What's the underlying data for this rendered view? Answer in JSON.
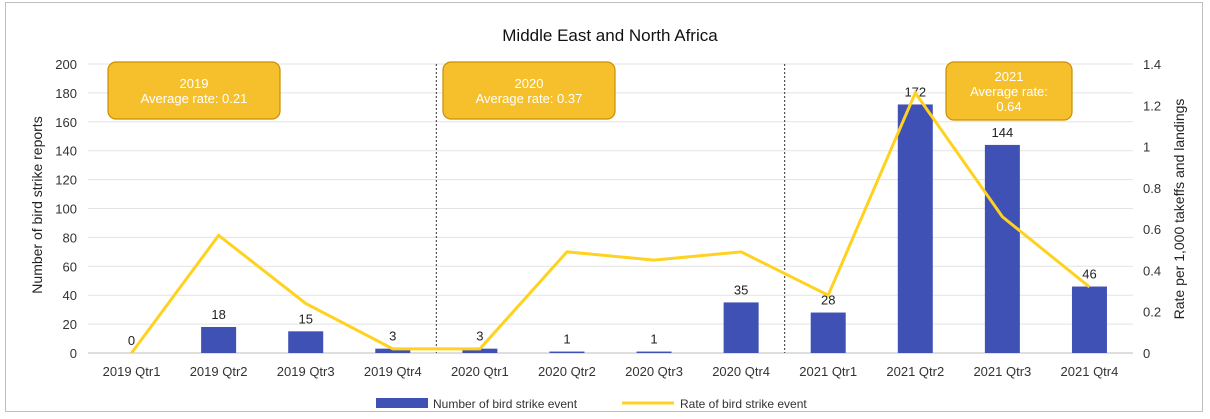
{
  "chart_data": {
    "type": "bar",
    "title": "Middle East and North Africa",
    "ylabel": "Number of bird strike reports",
    "y2label": "Rate per 1,000 takeffs and landings",
    "ylim": [
      0,
      200
    ],
    "y2lim": [
      0,
      1.4
    ],
    "yticks": [
      "0",
      "20",
      "40",
      "60",
      "80",
      "100",
      "120",
      "140",
      "160",
      "180",
      "200"
    ],
    "y2ticks": [
      "0",
      "0.2",
      "0.4",
      "0.6",
      "0.8",
      "1",
      "1.2",
      "1.4"
    ],
    "grid": true,
    "legend_position": "bottom",
    "categories": [
      "2019 Qtr1",
      "2019 Qtr2",
      "2019 Qtr3",
      "2019 Qtr4",
      "2020 Qtr1",
      "2020 Qtr2",
      "2020 Qtr3",
      "2020 Qtr4",
      "2021 Qtr1",
      "2021 Qtr2",
      "2021 Qtr3",
      "2021 Qtr4"
    ],
    "series": [
      {
        "name": "Number of bird strike event",
        "type": "bar",
        "axis": "left",
        "color": "#3f51b5",
        "values": [
          0,
          18,
          15,
          3,
          3,
          1,
          1,
          35,
          28,
          172,
          144,
          46
        ],
        "labels": [
          "0",
          "18",
          "15",
          "3",
          "3",
          "1",
          "1",
          "35",
          "28",
          "172",
          "144",
          "46"
        ]
      },
      {
        "name": "Rate of bird strike event",
        "type": "line",
        "axis": "right",
        "color": "#ffd21f",
        "values": [
          0.0,
          0.57,
          0.24,
          0.02,
          0.02,
          0.49,
          0.45,
          0.49,
          0.28,
          1.26,
          0.66,
          0.32
        ]
      }
    ],
    "annotations": [
      {
        "year": "2019",
        "text": "Average rate: 0.21",
        "lines": [
          "2019",
          "Average rate: 0.21"
        ]
      },
      {
        "year": "2020",
        "text": "Average rate: 0.37",
        "lines": [
          "2020",
          "Average rate: 0.37"
        ]
      },
      {
        "year": "2021",
        "text": "Average rate: 0.64",
        "lines": [
          "2021",
          "Average rate:",
          "0.64"
        ]
      }
    ],
    "annotation_color": "#f6c02c"
  }
}
